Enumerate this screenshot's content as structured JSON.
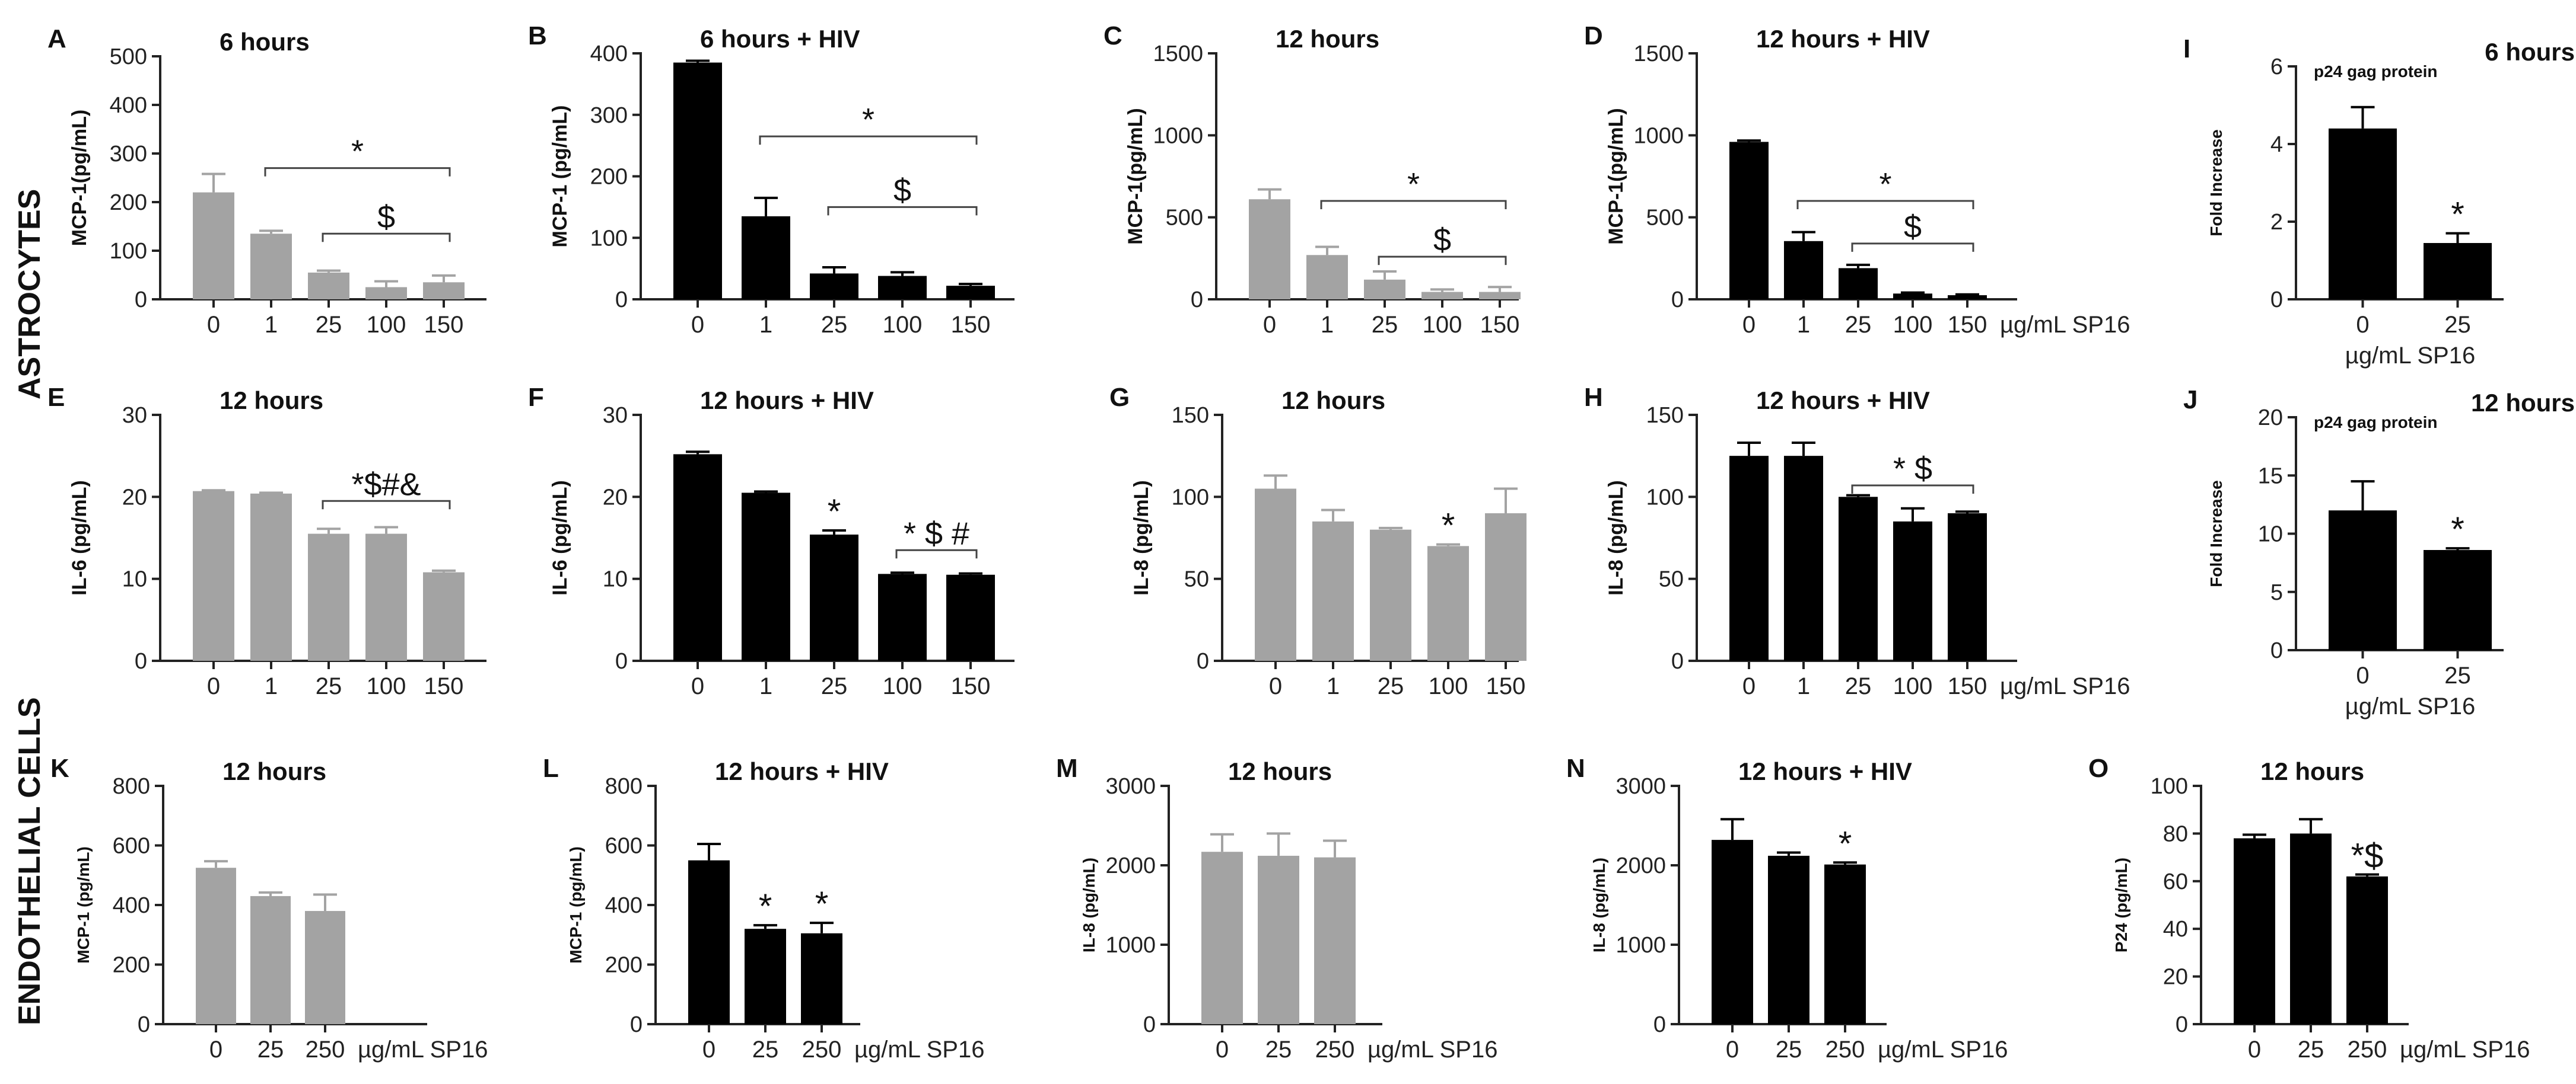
{
  "figure": {
    "row_labels": [
      "ASTROCYTES",
      "ENDOTHELIAL CELLS"
    ],
    "x_unit_label": "µg/mL SP16"
  },
  "colors": {
    "gray_bar": "#a3a3a3",
    "black_bar": "#000000",
    "axis": "#222222"
  },
  "chart_data": [
    {
      "panel": "A",
      "title": "6 hours",
      "type": "bar",
      "categories": [
        "0",
        "1",
        "25",
        "100",
        "150"
      ],
      "values": [
        220,
        135,
        55,
        25,
        35
      ],
      "errors": [
        38,
        6,
        4,
        12,
        14
      ],
      "ylabel": "MCP-1(pg/mL)",
      "ylim": [
        0,
        500
      ],
      "yticks": [
        0,
        100,
        200,
        300,
        400,
        500
      ],
      "color": "gray",
      "brackets": [
        {
          "from": 1,
          "to": 4,
          "level": 270,
          "label": "*"
        },
        {
          "from": 2,
          "to": 4,
          "level": 135,
          "label": "$"
        }
      ],
      "point_labels": []
    },
    {
      "panel": "B",
      "title": "6 hours + HIV",
      "type": "bar",
      "categories": [
        "0",
        "1",
        "25",
        "100",
        "150"
      ],
      "values": [
        385,
        135,
        42,
        38,
        22
      ],
      "errors": [
        3,
        30,
        10,
        6,
        3
      ],
      "ylabel": "MCP-1 (pg/mL)",
      "ylim": [
        0,
        400
      ],
      "yticks": [
        0,
        100,
        200,
        300,
        400
      ],
      "color": "black",
      "brackets": [
        {
          "from": 1,
          "to": 4,
          "level": 265,
          "label": "*"
        },
        {
          "from": 2,
          "to": 4,
          "level": 150,
          "label": "$"
        }
      ],
      "point_labels": []
    },
    {
      "panel": "C",
      "title": "12 hours",
      "type": "bar",
      "categories": [
        "0",
        "1",
        "25",
        "100",
        "150"
      ],
      "values": [
        610,
        270,
        120,
        45,
        45
      ],
      "errors": [
        60,
        50,
        50,
        15,
        30
      ],
      "ylabel": "MCP-1(pg/mL)",
      "ylim": [
        0,
        1500
      ],
      "yticks": [
        0,
        500,
        1000,
        1500
      ],
      "color": "gray",
      "brackets": [
        {
          "from": 1,
          "to": 4,
          "level": 600,
          "label": "*"
        },
        {
          "from": 2,
          "to": 4,
          "level": 260,
          "label": "$"
        }
      ],
      "point_labels": []
    },
    {
      "panel": "D",
      "title": "12 hours + HIV",
      "type": "bar",
      "categories": [
        "0",
        "1",
        "25",
        "100",
        "150"
      ],
      "values": [
        960,
        355,
        190,
        35,
        25
      ],
      "errors": [
        8,
        55,
        20,
        6,
        5
      ],
      "ylabel": "MCP-1(pg/mL)",
      "ylim": [
        0,
        1500
      ],
      "yticks": [
        0,
        500,
        1000,
        1500
      ],
      "color": "black",
      "xunit": "µg/mL SP16",
      "brackets": [
        {
          "from": 1,
          "to": 4,
          "level": 600,
          "label": "*"
        },
        {
          "from": 2,
          "to": 4,
          "level": 340,
          "label": "$"
        }
      ],
      "point_labels": []
    },
    {
      "panel": "I",
      "title": "6 hours",
      "subtitle": "p24 gag protein",
      "type": "bar",
      "categories": [
        "0",
        "25"
      ],
      "values": [
        4.4,
        1.45
      ],
      "errors": [
        0.55,
        0.25
      ],
      "ylabel": "Fold Increase",
      "ylim": [
        0,
        6
      ],
      "yticks": [
        0,
        2,
        4,
        6
      ],
      "color": "black",
      "xunit": "µg/mL SP16",
      "brackets": [],
      "point_labels": [
        {
          "index": 1,
          "label": "*"
        }
      ]
    },
    {
      "panel": "E",
      "title": "12 hours",
      "type": "bar",
      "categories": [
        "0",
        "1",
        "25",
        "100",
        "150"
      ],
      "values": [
        20.7,
        20.4,
        15.5,
        15.5,
        10.8
      ],
      "errors": [
        0.1,
        0.1,
        0.6,
        0.8,
        0.2
      ],
      "ylabel": "IL-6 (pg/mL)",
      "ylim": [
        0,
        30
      ],
      "yticks": [
        0,
        10,
        20,
        30
      ],
      "color": "gray",
      "brackets": [
        {
          "from": 2,
          "to": 4,
          "level": 19.5,
          "label": "*$#&"
        }
      ],
      "point_labels": []
    },
    {
      "panel": "F",
      "title": "12 hours + HIV",
      "type": "bar",
      "categories": [
        "0",
        "1",
        "25",
        "100",
        "150"
      ],
      "values": [
        25.2,
        20.5,
        15.4,
        10.6,
        10.5
      ],
      "errors": [
        0.3,
        0.15,
        0.5,
        0.15,
        0.15
      ],
      "ylabel": "IL-6 (pg/mL)",
      "ylim": [
        0,
        30
      ],
      "yticks": [
        0,
        10,
        20,
        30
      ],
      "color": "black",
      "brackets": [
        {
          "from": 3,
          "to": 4,
          "level": 13.5,
          "label": "* $ #"
        }
      ],
      "point_labels": [
        {
          "index": 2,
          "label": "*"
        }
      ]
    },
    {
      "panel": "G",
      "title": "12 hours",
      "type": "bar",
      "categories": [
        "0",
        "1",
        "25",
        "100",
        "150"
      ],
      "values": [
        105,
        85,
        80,
        70,
        90
      ],
      "errors": [
        8,
        7,
        1,
        1,
        15
      ],
      "ylabel": "IL-8 (pg/mL)",
      "ylim": [
        0,
        150
      ],
      "yticks": [
        0,
        50,
        100,
        150
      ],
      "color": "gray",
      "brackets": [],
      "point_labels": [
        {
          "index": 3,
          "label": "*"
        }
      ]
    },
    {
      "panel": "H",
      "title": "12 hours + HIV",
      "type": "bar",
      "categories": [
        "0",
        "1",
        "25",
        "100",
        "150"
      ],
      "values": [
        125,
        125,
        100,
        85,
        90
      ],
      "errors": [
        8,
        8,
        1,
        8,
        1
      ],
      "ylabel": "IL-8 (pg/mL)",
      "ylim": [
        0,
        150
      ],
      "yticks": [
        0,
        50,
        100,
        150
      ],
      "color": "black",
      "xunit": "µg/mL SP16",
      "brackets": [
        {
          "from": 2,
          "to": 4,
          "level": 107,
          "label": "* $"
        }
      ],
      "point_labels": []
    },
    {
      "panel": "J",
      "title": "12 hours",
      "subtitle": "p24 gag protein",
      "type": "bar",
      "categories": [
        "0",
        "25"
      ],
      "values": [
        12,
        8.6
      ],
      "errors": [
        2.5,
        0.15
      ],
      "ylabel": "Fold Increase",
      "ylim": [
        0,
        20
      ],
      "yticks": [
        0,
        5,
        10,
        15,
        20
      ],
      "color": "black",
      "xunit": "µg/mL SP16",
      "brackets": [],
      "point_labels": [
        {
          "index": 1,
          "label": "*"
        }
      ]
    },
    {
      "panel": "K",
      "title": "12 hours",
      "type": "bar",
      "categories": [
        "0",
        "25",
        "250"
      ],
      "values": [
        525,
        430,
        380
      ],
      "errors": [
        22,
        12,
        55
      ],
      "ylabel": "MCP-1 (pg/mL)",
      "ylim": [
        0,
        800
      ],
      "yticks": [
        0,
        200,
        400,
        600,
        800
      ],
      "color": "gray",
      "xunit": "µg/mL SP16",
      "brackets": [],
      "point_labels": []
    },
    {
      "panel": "L",
      "title": "12 hours + HIV",
      "type": "bar",
      "categories": [
        "0",
        "25",
        "250"
      ],
      "values": [
        550,
        320,
        305
      ],
      "errors": [
        55,
        12,
        35
      ],
      "ylabel": "MCP-1 (pg/mL)",
      "ylim": [
        0,
        800
      ],
      "yticks": [
        0,
        200,
        400,
        600,
        800
      ],
      "color": "black",
      "xunit": "µg/mL SP16",
      "brackets": [],
      "point_labels": [
        {
          "index": 1,
          "label": "*"
        },
        {
          "index": 2,
          "label": "*"
        }
      ]
    },
    {
      "panel": "M",
      "title": "12 hours",
      "type": "bar",
      "categories": [
        "0",
        "25",
        "250"
      ],
      "values": [
        2170,
        2120,
        2100
      ],
      "errors": [
        220,
        280,
        210
      ],
      "ylabel": "IL-8 (pg/mL)",
      "ylim": [
        0,
        3000
      ],
      "yticks": [
        0,
        1000,
        2000,
        3000
      ],
      "color": "gray",
      "xunit": "µg/mL SP16",
      "brackets": [],
      "point_labels": []
    },
    {
      "panel": "N",
      "title": "12 hours + HIV",
      "type": "bar",
      "categories": [
        "0",
        "25",
        "250"
      ],
      "values": [
        2320,
        2120,
        2010
      ],
      "errors": [
        260,
        40,
        25
      ],
      "ylabel": "IL-8 (pg/mL)",
      "ylim": [
        0,
        3000
      ],
      "yticks": [
        0,
        1000,
        2000,
        3000
      ],
      "color": "black",
      "xunit": "µg/mL SP16",
      "brackets": [],
      "point_labels": [
        {
          "index": 2,
          "label": "*"
        }
      ]
    },
    {
      "panel": "O",
      "title": "12 hours",
      "type": "bar",
      "categories": [
        "0",
        "25",
        "250"
      ],
      "values": [
        78,
        80,
        62
      ],
      "errors": [
        1.5,
        6,
        0.8
      ],
      "ylabel": "P24 (pg/mL)",
      "ylim": [
        0,
        100
      ],
      "yticks": [
        0,
        20,
        40,
        60,
        80,
        100
      ],
      "color": "black",
      "xunit": "µg/mL SP16",
      "brackets": [],
      "point_labels": [
        {
          "index": 2,
          "label": "*$"
        }
      ]
    }
  ]
}
